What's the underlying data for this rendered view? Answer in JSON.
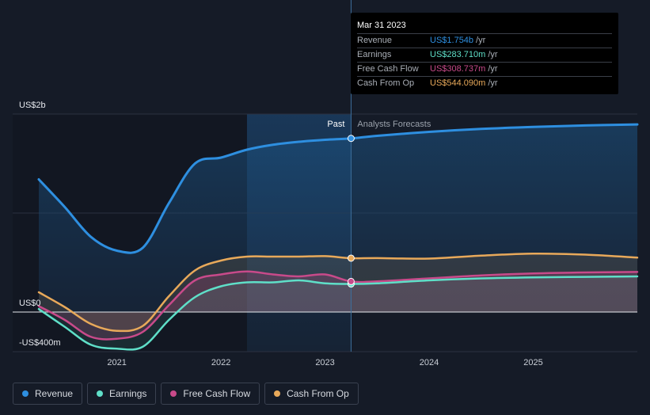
{
  "chart_data": {
    "type": "area",
    "title": "",
    "xlabel": "",
    "ylabel": "",
    "ylim": [
      -400,
      2000
    ],
    "y_ticks": [
      {
        "value": 2000,
        "label": "US$2b"
      },
      {
        "value": 0,
        "label": "US$0"
      },
      {
        "value": -400,
        "label": "-US$400m"
      }
    ],
    "x_ticks": [
      {
        "value": 2021.0,
        "label": "2021"
      },
      {
        "value": 2022.0,
        "label": "2022"
      },
      {
        "value": 2023.0,
        "label": "2023"
      },
      {
        "value": 2024.0,
        "label": "2024"
      },
      {
        "value": 2025.0,
        "label": "2025"
      }
    ],
    "xlim": [
      2020.25,
      2026.0
    ],
    "past_start": 2022.25,
    "past_end": 2023.25,
    "past_label": "Past",
    "forecast_label": "Analysts Forecasts",
    "grid": true,
    "legend_position": "bottom-left",
    "series": [
      {
        "name": "Revenue",
        "color": "#2e8fe0",
        "x": [
          2020.25,
          2020.5,
          2020.75,
          2021.0,
          2021.25,
          2021.5,
          2021.75,
          2022.0,
          2022.25,
          2022.5,
          2022.75,
          2023.0,
          2023.25,
          2023.5,
          2024.0,
          2024.5,
          2025.0,
          2025.5,
          2026.0
        ],
        "y": [
          1340,
          1060,
          760,
          620,
          650,
          1100,
          1500,
          1560,
          1640,
          1690,
          1720,
          1740,
          1754,
          1780,
          1820,
          1850,
          1870,
          1885,
          1895
        ]
      },
      {
        "name": "Earnings",
        "color": "#5fdfc8",
        "x": [
          2020.25,
          2020.5,
          2020.75,
          2021.0,
          2021.25,
          2021.5,
          2021.75,
          2022.0,
          2022.25,
          2022.5,
          2022.75,
          2023.0,
          2023.25,
          2023.5,
          2024.0,
          2024.5,
          2025.0,
          2025.5,
          2026.0
        ],
        "y": [
          30,
          -150,
          -330,
          -370,
          -350,
          -80,
          150,
          260,
          300,
          300,
          320,
          290,
          283.71,
          290,
          320,
          340,
          350,
          355,
          360
        ]
      },
      {
        "name": "Free Cash Flow",
        "color": "#c84a8a",
        "x": [
          2020.25,
          2020.5,
          2020.75,
          2021.0,
          2021.25,
          2021.5,
          2021.75,
          2022.0,
          2022.25,
          2022.5,
          2022.75,
          2023.0,
          2023.25,
          2023.5,
          2024.0,
          2024.5,
          2025.0,
          2025.5,
          2026.0
        ],
        "y": [
          60,
          -80,
          -250,
          -270,
          -200,
          70,
          320,
          380,
          410,
          380,
          360,
          380,
          308.74,
          310,
          340,
          370,
          390,
          400,
          405
        ]
      },
      {
        "name": "Cash From Op",
        "color": "#e8a95a",
        "x": [
          2020.25,
          2020.5,
          2020.75,
          2021.0,
          2021.25,
          2021.5,
          2021.75,
          2022.0,
          2022.25,
          2022.5,
          2022.75,
          2023.0,
          2023.25,
          2023.5,
          2024.0,
          2024.5,
          2025.0,
          2025.5,
          2026.0
        ],
        "y": [
          200,
          50,
          -120,
          -190,
          -140,
          160,
          420,
          520,
          560,
          560,
          560,
          565,
          544.09,
          545,
          540,
          570,
          590,
          580,
          550
        ]
      }
    ]
  },
  "tooltip": {
    "date": "Mar 31 2023",
    "rows": [
      {
        "label": "Revenue",
        "value": "US$1.754b",
        "unit": "/yr",
        "color": "#2e8fe0"
      },
      {
        "label": "Earnings",
        "value": "US$283.710m",
        "unit": "/yr",
        "color": "#5fdfc8"
      },
      {
        "label": "Free Cash Flow",
        "value": "US$308.737m",
        "unit": "/yr",
        "color": "#c84a8a"
      },
      {
        "label": "Cash From Op",
        "value": "US$544.090m",
        "unit": "/yr",
        "color": "#e8a95a"
      }
    ]
  },
  "legend": [
    {
      "label": "Revenue",
      "color": "#2e8fe0"
    },
    {
      "label": "Earnings",
      "color": "#5fdfc8"
    },
    {
      "label": "Free Cash Flow",
      "color": "#c84a8a"
    },
    {
      "label": "Cash From Op",
      "color": "#e8a95a"
    }
  ]
}
